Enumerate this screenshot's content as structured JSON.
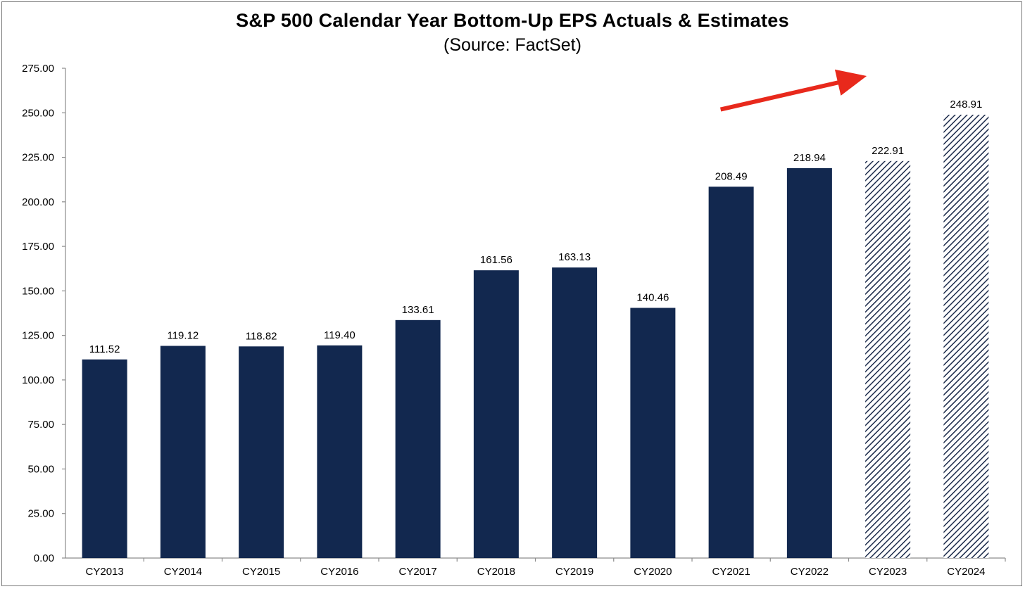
{
  "chart_data": {
    "type": "bar",
    "title": "S&P 500 Calendar Year Bottom-Up EPS Actuals & Estimates",
    "subtitle": "(Source: FactSet)",
    "xlabel": "",
    "ylabel": "",
    "categories": [
      "CY2013",
      "CY2014",
      "CY2015",
      "CY2016",
      "CY2017",
      "CY2018",
      "CY2019",
      "CY2020",
      "CY2021",
      "CY2022",
      "CY2023",
      "CY2024"
    ],
    "values": [
      111.52,
      119.12,
      118.82,
      119.4,
      133.61,
      161.56,
      163.13,
      140.46,
      208.49,
      218.94,
      222.91,
      248.91
    ],
    "data_labels": [
      "111.52",
      "119.12",
      "118.82",
      "119.40",
      "133.61",
      "161.56",
      "163.13",
      "140.46",
      "208.49",
      "218.94",
      "222.91",
      "248.91"
    ],
    "estimate": [
      false,
      false,
      false,
      false,
      false,
      false,
      false,
      false,
      false,
      false,
      true,
      true
    ],
    "ylim": [
      0,
      275
    ],
    "yticks": [
      "0.00",
      "25.00",
      "50.00",
      "75.00",
      "100.00",
      "125.00",
      "150.00",
      "175.00",
      "200.00",
      "225.00",
      "250.00",
      "275.00"
    ],
    "grid": false,
    "legend": "none",
    "colors": {
      "actual": "#12284f",
      "estimate_hatch": "#1b2a4a",
      "arrow": "#e8291c"
    },
    "annotations": [
      {
        "type": "arrow",
        "from_category": "CY2021",
        "to_category": "CY2023",
        "from_value": 240,
        "to_value": 260
      }
    ]
  }
}
